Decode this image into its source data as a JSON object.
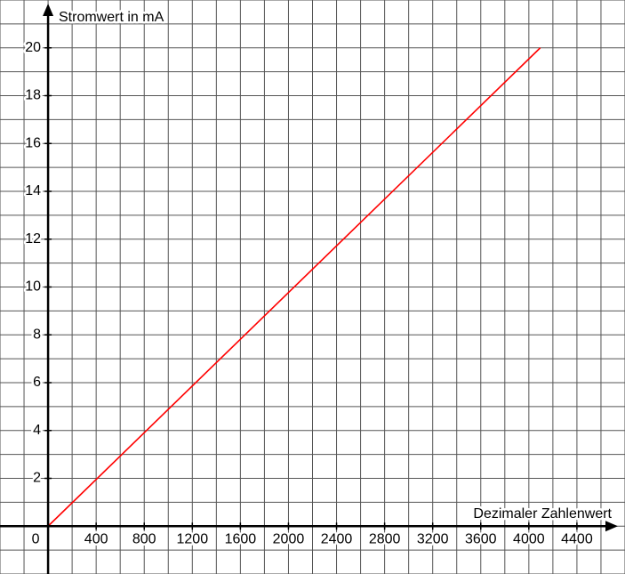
{
  "chart_data": {
    "type": "line",
    "xlabel": "Dezimaler Zahlenwert",
    "ylabel": "Stromwert in mA",
    "x": [
      0,
      4095
    ],
    "series": [
      {
        "color": "#ff0000",
        "values": [
          0,
          20
        ]
      }
    ],
    "xlim": [
      -400,
      4800
    ],
    "ylim": [
      -2,
      22
    ],
    "xticks": [
      0,
      400,
      800,
      1200,
      1600,
      2000,
      2400,
      2800,
      3200,
      3600,
      4000,
      4400
    ],
    "yticks": [
      2,
      4,
      6,
      8,
      10,
      12,
      14,
      16,
      18,
      20
    ],
    "grid": true
  }
}
